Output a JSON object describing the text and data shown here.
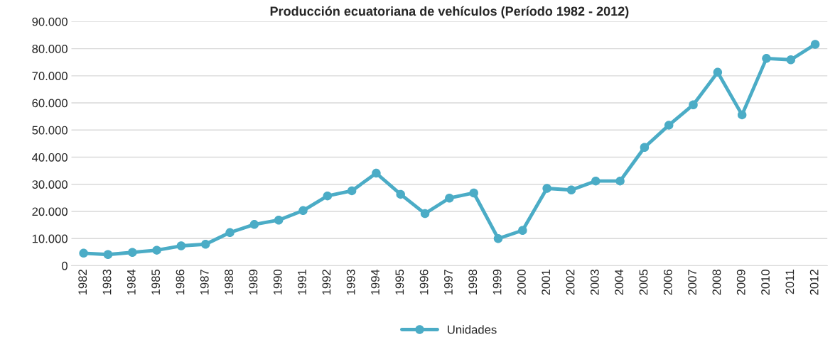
{
  "chart_data": {
    "type": "line",
    "title": "Producción ecuatoriana de vehículos (Período 1982 - 2012)",
    "categories": [
      "1982",
      "1983",
      "1984",
      "1985",
      "1986",
      "1987",
      "1988",
      "1989",
      "1990",
      "1991",
      "1992",
      "1993",
      "1994",
      "1995",
      "1996",
      "1997",
      "1998",
      "1999",
      "2000",
      "2001",
      "2002",
      "2003",
      "2004",
      "2005",
      "2006",
      "2007",
      "2008",
      "2009",
      "2010",
      "2011",
      "2012"
    ],
    "series": [
      {
        "name": "Unidades",
        "color": "#4bacc6",
        "values": [
          4600,
          4100,
          4900,
          5700,
          7300,
          7900,
          12200,
          15200,
          16800,
          20300,
          25700,
          27600,
          34100,
          26300,
          19200,
          24900,
          26800,
          10000,
          13000,
          28500,
          27900,
          31200,
          31200,
          43600,
          51800,
          59300,
          71300,
          55600,
          76400,
          75900,
          81600
        ]
      }
    ],
    "ylim": [
      0,
      90000
    ],
    "yticks": [
      0,
      {
        "value": 10000,
        "label": "10.000"
      },
      {
        "value": 20000,
        "label": "20.000"
      },
      {
        "value": 30000,
        "label": "30.000"
      },
      {
        "value": 40000,
        "label": "40.000"
      },
      {
        "value": 50000,
        "label": "50.000"
      },
      {
        "value": 60000,
        "label": "60.000"
      },
      {
        "value": 70000,
        "label": "70.000"
      },
      {
        "value": 80000,
        "label": "80.000"
      },
      {
        "value": 90000,
        "label": "90.000"
      }
    ],
    "grid": "y",
    "legend": "bottom",
    "marker": "circle",
    "line_style": "solid"
  }
}
